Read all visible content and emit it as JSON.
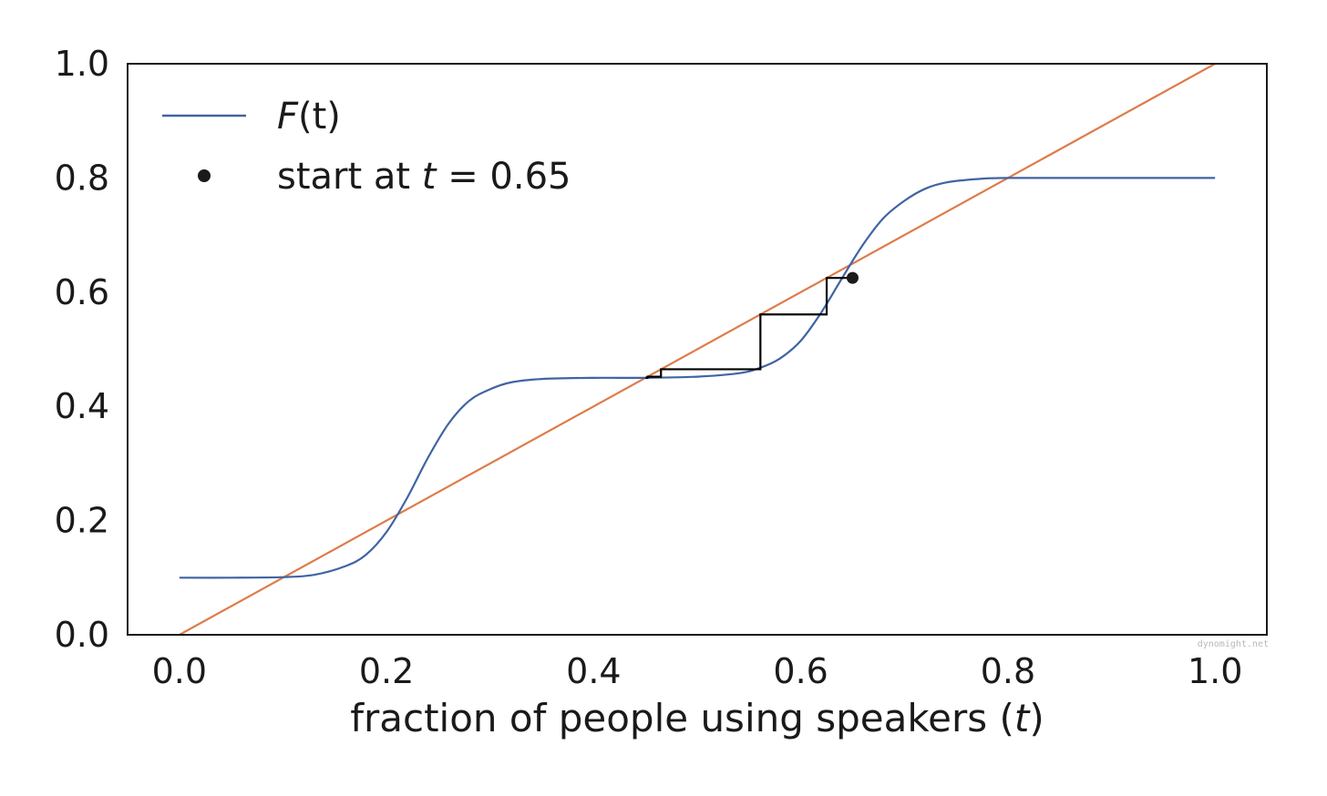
{
  "chart_data": {
    "type": "line",
    "title": "",
    "xlabel": "fraction of people using speakers (t)",
    "xlabel_parts": {
      "prefix": "fraction of people using speakers (",
      "var": "t",
      "suffix": ")"
    },
    "ylabel": "",
    "xlim": [
      -0.05,
      1.05
    ],
    "ylim": [
      0.0,
      1.0
    ],
    "x_ticks": [
      "0.0",
      "0.2",
      "0.4",
      "0.6",
      "0.8",
      "1.0"
    ],
    "y_ticks": [
      "0.0",
      "0.2",
      "0.4",
      "0.6",
      "0.8",
      "1.0"
    ],
    "x_tick_values": [
      0.0,
      0.2,
      0.4,
      0.6,
      0.8,
      1.0
    ],
    "y_tick_values": [
      0.0,
      0.2,
      0.4,
      0.6,
      0.8,
      1.0
    ],
    "grid": false,
    "legend_position": "top-left",
    "series": [
      {
        "name": "F(t)",
        "color": "#4064a4",
        "x": [
          0.0,
          0.05,
          0.1,
          0.13,
          0.16,
          0.18,
          0.2,
          0.22,
          0.24,
          0.26,
          0.28,
          0.3,
          0.32,
          0.35,
          0.4,
          0.45,
          0.5,
          0.54,
          0.56,
          0.58,
          0.6,
          0.62,
          0.64,
          0.66,
          0.68,
          0.7,
          0.72,
          0.74,
          0.77,
          0.8,
          0.9,
          1.0
        ],
        "y": [
          0.1,
          0.1,
          0.101,
          0.105,
          0.12,
          0.14,
          0.18,
          0.24,
          0.31,
          0.37,
          0.41,
          0.43,
          0.442,
          0.448,
          0.45,
          0.45,
          0.452,
          0.458,
          0.467,
          0.484,
          0.515,
          0.565,
          0.625,
          0.683,
          0.73,
          0.76,
          0.781,
          0.792,
          0.798,
          0.8,
          0.8,
          0.8
        ]
      },
      {
        "name": "",
        "color": "#dd7c4a",
        "x": [
          0.0,
          1.0
        ],
        "y": [
          0.0,
          1.0
        ]
      }
    ],
    "cobweb": {
      "color": "#000000",
      "x": [
        0.65,
        0.625,
        0.625,
        0.561,
        0.561,
        0.465,
        0.465,
        0.452,
        0.452,
        0.45
      ],
      "y": [
        0.625,
        0.625,
        0.561,
        0.561,
        0.465,
        0.465,
        0.452,
        0.452,
        0.45,
        0.45
      ]
    },
    "start_point": {
      "name": "start at t = 0.65",
      "x": 0.65,
      "y": 0.625,
      "color": "#1a1a1a"
    },
    "legend": [
      {
        "kind": "line",
        "label_italic": "F",
        "label_rest": "(t)",
        "color": "#4064a4"
      },
      {
        "kind": "dot",
        "label_prefix": "start at ",
        "label_italic": "t",
        "label_rest": " = 0.65",
        "color": "#1a1a1a"
      }
    ],
    "watermark": "dynomight.net"
  }
}
